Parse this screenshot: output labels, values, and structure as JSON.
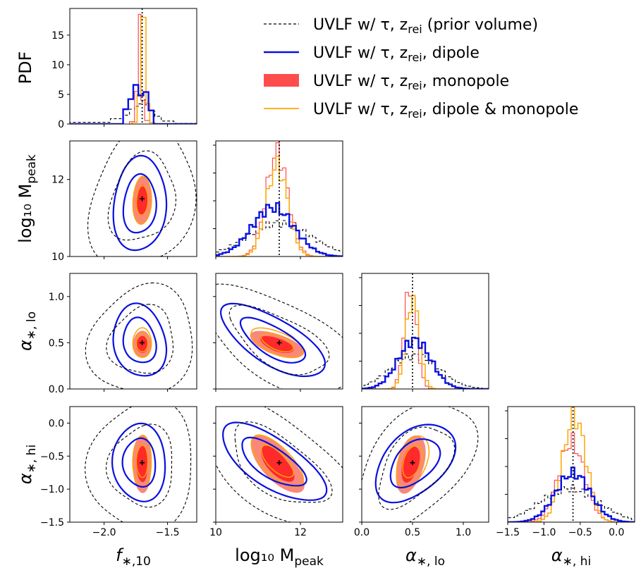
{
  "chart_data": {
    "type": "corner",
    "params": [
      {
        "key": "fstar",
        "label_base": "f",
        "label_sub": "∗,10",
        "range": [
          -2.27,
          -1.27
        ],
        "ticks": [
          -2.0,
          -1.5
        ],
        "tick_labels": [
          "−2.0",
          "−1.5"
        ],
        "truth": -1.7
      },
      {
        "key": "mpeak",
        "label_base": "log₁₀ M",
        "label_sub": "peak",
        "range": [
          10.0,
          13.0
        ],
        "ticks": [
          10,
          12
        ],
        "tick_labels": [
          "10",
          "12"
        ],
        "truth": 11.5
      },
      {
        "key": "alo",
        "label_base": "α",
        "label_sub": "∗, lo",
        "range": [
          0.0,
          1.25
        ],
        "ticks": [
          0.0,
          0.5,
          1.0
        ],
        "tick_labels": [
          "0.0",
          "0.5",
          "1.0"
        ],
        "truth": 0.5
      },
      {
        "key": "ahi",
        "label_base": "α",
        "label_sub": "∗, hi",
        "range": [
          -1.5,
          0.25
        ],
        "ticks": [
          -1.5,
          -1.0,
          -0.5,
          0.0
        ],
        "tick_labels": [
          "−1.5",
          "−1.0",
          "−0.5",
          "0.0"
        ],
        "truth": -0.6
      }
    ],
    "pdf_axis": {
      "label": "PDF",
      "range": [
        0,
        19.5
      ],
      "ticks": [
        0,
        5,
        10,
        15
      ],
      "tick_labels": [
        "0",
        "5",
        "10",
        "15"
      ]
    },
    "series": [
      {
        "name": "prior",
        "label": "UVLF w/ τ, z",
        "label_sub": "rei",
        "label_tail": " (prior volume)",
        "color": "#000000",
        "style": "dashed"
      },
      {
        "name": "dipole",
        "label": "UVLF w/ τ, z",
        "label_sub": "rei",
        "label_tail": ", dipole",
        "color": "#0a10e0",
        "style": "solid"
      },
      {
        "name": "monopole",
        "label": "UVLF w/ τ, z",
        "label_sub": "rei",
        "label_tail": ", monopole",
        "color": "#ff4d4d",
        "style": "filled"
      },
      {
        "name": "both",
        "label": "UVLF w/ τ, z",
        "label_sub": "rei",
        "label_tail": ", dipole & monopole",
        "color": "#ffa500",
        "style": "solid"
      }
    ],
    "posteriors": {
      "prior": {
        "mean": [
          -1.7,
          11.5,
          0.52,
          -0.65
        ],
        "sd": [
          0.17,
          0.75,
          0.24,
          0.4
        ],
        "corr": [
          [
            0,
            1,
            0.2
          ],
          [
            0,
            2,
            0.1
          ],
          [
            0,
            3,
            0.05
          ],
          [
            1,
            2,
            -0.6
          ],
          [
            1,
            3,
            -0.6
          ],
          [
            2,
            3,
            0.5
          ]
        ]
      },
      "dipole": {
        "mean": [
          -1.72,
          11.35,
          0.52,
          -0.6
        ],
        "sd": [
          0.085,
          0.5,
          0.16,
          0.24
        ],
        "corr": [
          [
            0,
            1,
            0.1
          ],
          [
            0,
            2,
            -0.15
          ],
          [
            0,
            3,
            -0.05
          ],
          [
            1,
            2,
            -0.7
          ],
          [
            1,
            3,
            -0.7
          ],
          [
            2,
            3,
            0.45
          ]
        ]
      },
      "monopole": {
        "mean": [
          -1.7,
          11.45,
          0.48,
          -0.62
        ],
        "sd": [
          0.03,
          0.26,
          0.06,
          0.18
        ],
        "corr": [
          [
            0,
            1,
            0.1
          ],
          [
            0,
            2,
            0.0
          ],
          [
            0,
            3,
            0.0
          ],
          [
            1,
            2,
            -0.6
          ],
          [
            1,
            3,
            -0.7
          ],
          [
            2,
            3,
            0.4
          ]
        ]
      },
      "both": {
        "mean": [
          -1.7,
          11.45,
          0.5,
          -0.58
        ],
        "sd": [
          0.03,
          0.25,
          0.065,
          0.16
        ],
        "corr": [
          [
            0,
            1,
            0.1
          ],
          [
            0,
            2,
            0.0
          ],
          [
            0,
            3,
            0.0
          ],
          [
            1,
            2,
            -0.6
          ],
          [
            1,
            3,
            -0.7
          ],
          [
            2,
            3,
            0.4
          ]
        ]
      }
    },
    "fstar_pdf": {
      "prior_bins": [
        [
          -2.27,
          -1.95,
          0.3
        ],
        [
          -1.95,
          -1.85,
          0.9
        ],
        [
          -1.85,
          -1.8,
          1.5
        ],
        [
          -1.8,
          -1.76,
          2.5
        ],
        [
          -1.76,
          -1.73,
          3.0
        ],
        [
          -1.73,
          -1.7,
          3.4
        ],
        [
          -1.7,
          -1.67,
          4.1
        ],
        [
          -1.67,
          -1.64,
          3.2
        ],
        [
          -1.64,
          -1.6,
          2.2
        ],
        [
          -1.6,
          -1.55,
          1.3
        ],
        [
          -1.55,
          -1.45,
          0.5
        ],
        [
          -1.45,
          -1.27,
          0.1
        ]
      ],
      "dipole_bins": [
        [
          -2.27,
          -1.85,
          0.0
        ],
        [
          -1.85,
          -1.81,
          2.5
        ],
        [
          -1.81,
          -1.77,
          4.2
        ],
        [
          -1.77,
          -1.73,
          6.6
        ],
        [
          -1.73,
          -1.69,
          4.8
        ],
        [
          -1.69,
          -1.65,
          5.4
        ],
        [
          -1.65,
          -1.61,
          2.3
        ],
        [
          -1.61,
          -1.27,
          0.0
        ]
      ],
      "mono_bins": [
        [
          -1.8,
          -1.76,
          0.4
        ],
        [
          -1.76,
          -1.73,
          5.5
        ],
        [
          -1.73,
          -1.71,
          18.5
        ],
        [
          -1.71,
          -1.68,
          4.0
        ],
        [
          -1.68,
          -1.64,
          0.6
        ],
        [
          -1.64,
          -1.6,
          0.2
        ]
      ],
      "both_bins": [
        [
          -1.78,
          -1.74,
          0.3
        ],
        [
          -1.74,
          -1.71,
          5.0
        ],
        [
          -1.71,
          -1.67,
          18.0
        ],
        [
          -1.67,
          -1.64,
          3.5
        ],
        [
          -1.64,
          -1.6,
          0.2
        ]
      ]
    },
    "truth_marker": "+"
  }
}
